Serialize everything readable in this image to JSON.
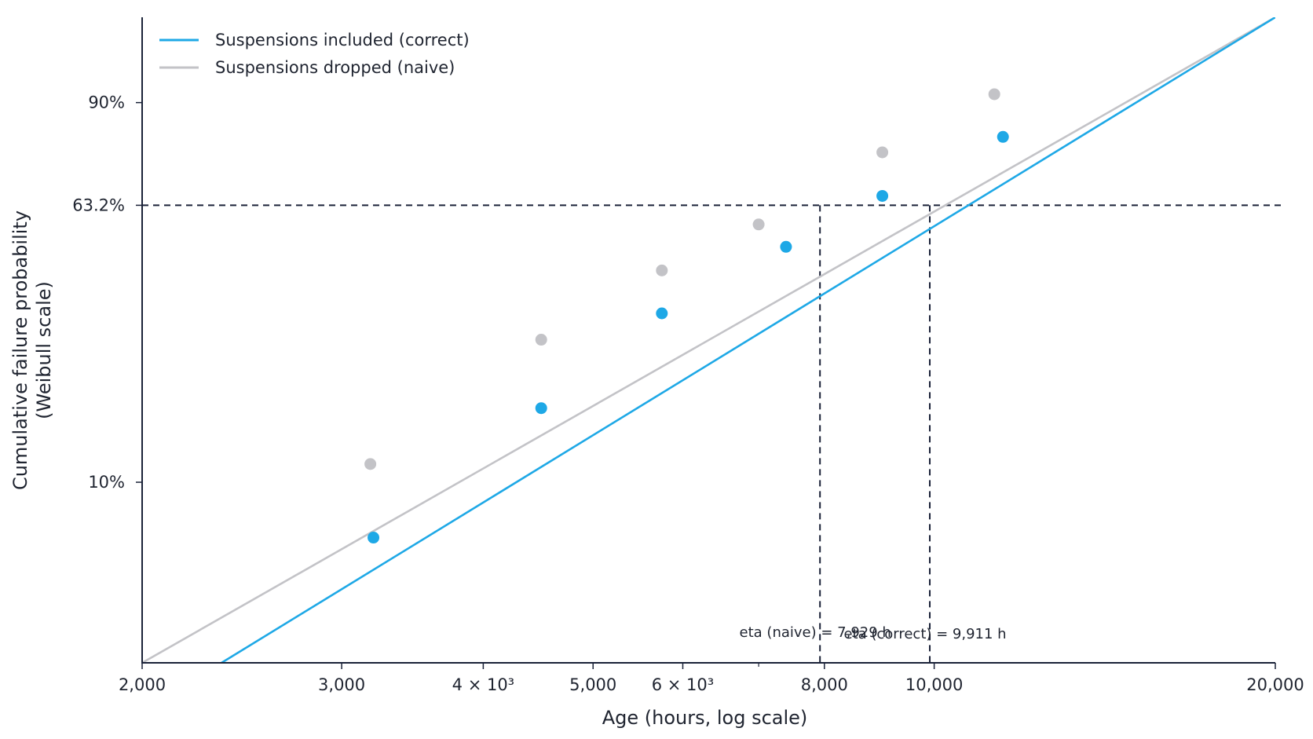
{
  "chart_data": {
    "type": "line",
    "title": "",
    "xlabel": "Age (hours, log scale)",
    "ylabel_lines": [
      "Cumulative failure probability",
      "(Weibull scale)"
    ],
    "x_scale": "log",
    "y_scale": "weibull",
    "xlim": [
      2000,
      20000
    ],
    "ylim": [
      0.024,
      0.99
    ],
    "grid": false,
    "legend_position": "top-left",
    "x_ticks": [
      {
        "value": 2000,
        "label": "2,000"
      },
      {
        "value": 3000,
        "label": "3,000"
      },
      {
        "value": 4000,
        "label": "4 × 10³"
      },
      {
        "value": 5000,
        "label": "5,000"
      },
      {
        "value": 6000,
        "label": "6 × 10³"
      },
      {
        "value": 8000,
        "label": "8,000"
      },
      {
        "value": 10000,
        "label": "10,000"
      },
      {
        "value": 20000,
        "label": "20,000"
      }
    ],
    "x_minor_ticks": [
      7000
    ],
    "y_ticks": [
      {
        "value": 0.1,
        "label": "10%"
      },
      {
        "value": 0.632,
        "label": "63.2%"
      },
      {
        "value": 0.9,
        "label": "90%"
      }
    ],
    "series": [
      {
        "name": "Suspensions included (correct)",
        "color": "#1ea8e6",
        "line": {
          "x": [
            2350,
            20000
          ],
          "y": [
            0.024,
            0.99
          ]
        },
        "points": {
          "x": [
            3200,
            4500,
            5750,
            7400,
            9000,
            11500
          ],
          "y": [
            0.065,
            0.175,
            0.34,
            0.51,
            0.66,
            0.825
          ]
        }
      },
      {
        "name": "Suspensions dropped (naive)",
        "color": "#c3c3c7",
        "line": {
          "x": [
            2000,
            20000
          ],
          "y": [
            0.024,
            0.99
          ]
        },
        "points": {
          "x": [
            3180,
            4500,
            5750,
            7000,
            9000,
            11300
          ],
          "y": [
            0.115,
            0.285,
            0.445,
            0.575,
            0.785,
            0.915
          ]
        }
      }
    ],
    "reference_lines": {
      "horizontal": {
        "y": 0.632,
        "color": "#1a2238"
      },
      "vertical": [
        {
          "x": 7929,
          "label": "eta (naive) = 7,929 h"
        },
        {
          "x": 9911,
          "label": "eta (correct) = 9,911 h"
        }
      ]
    }
  }
}
